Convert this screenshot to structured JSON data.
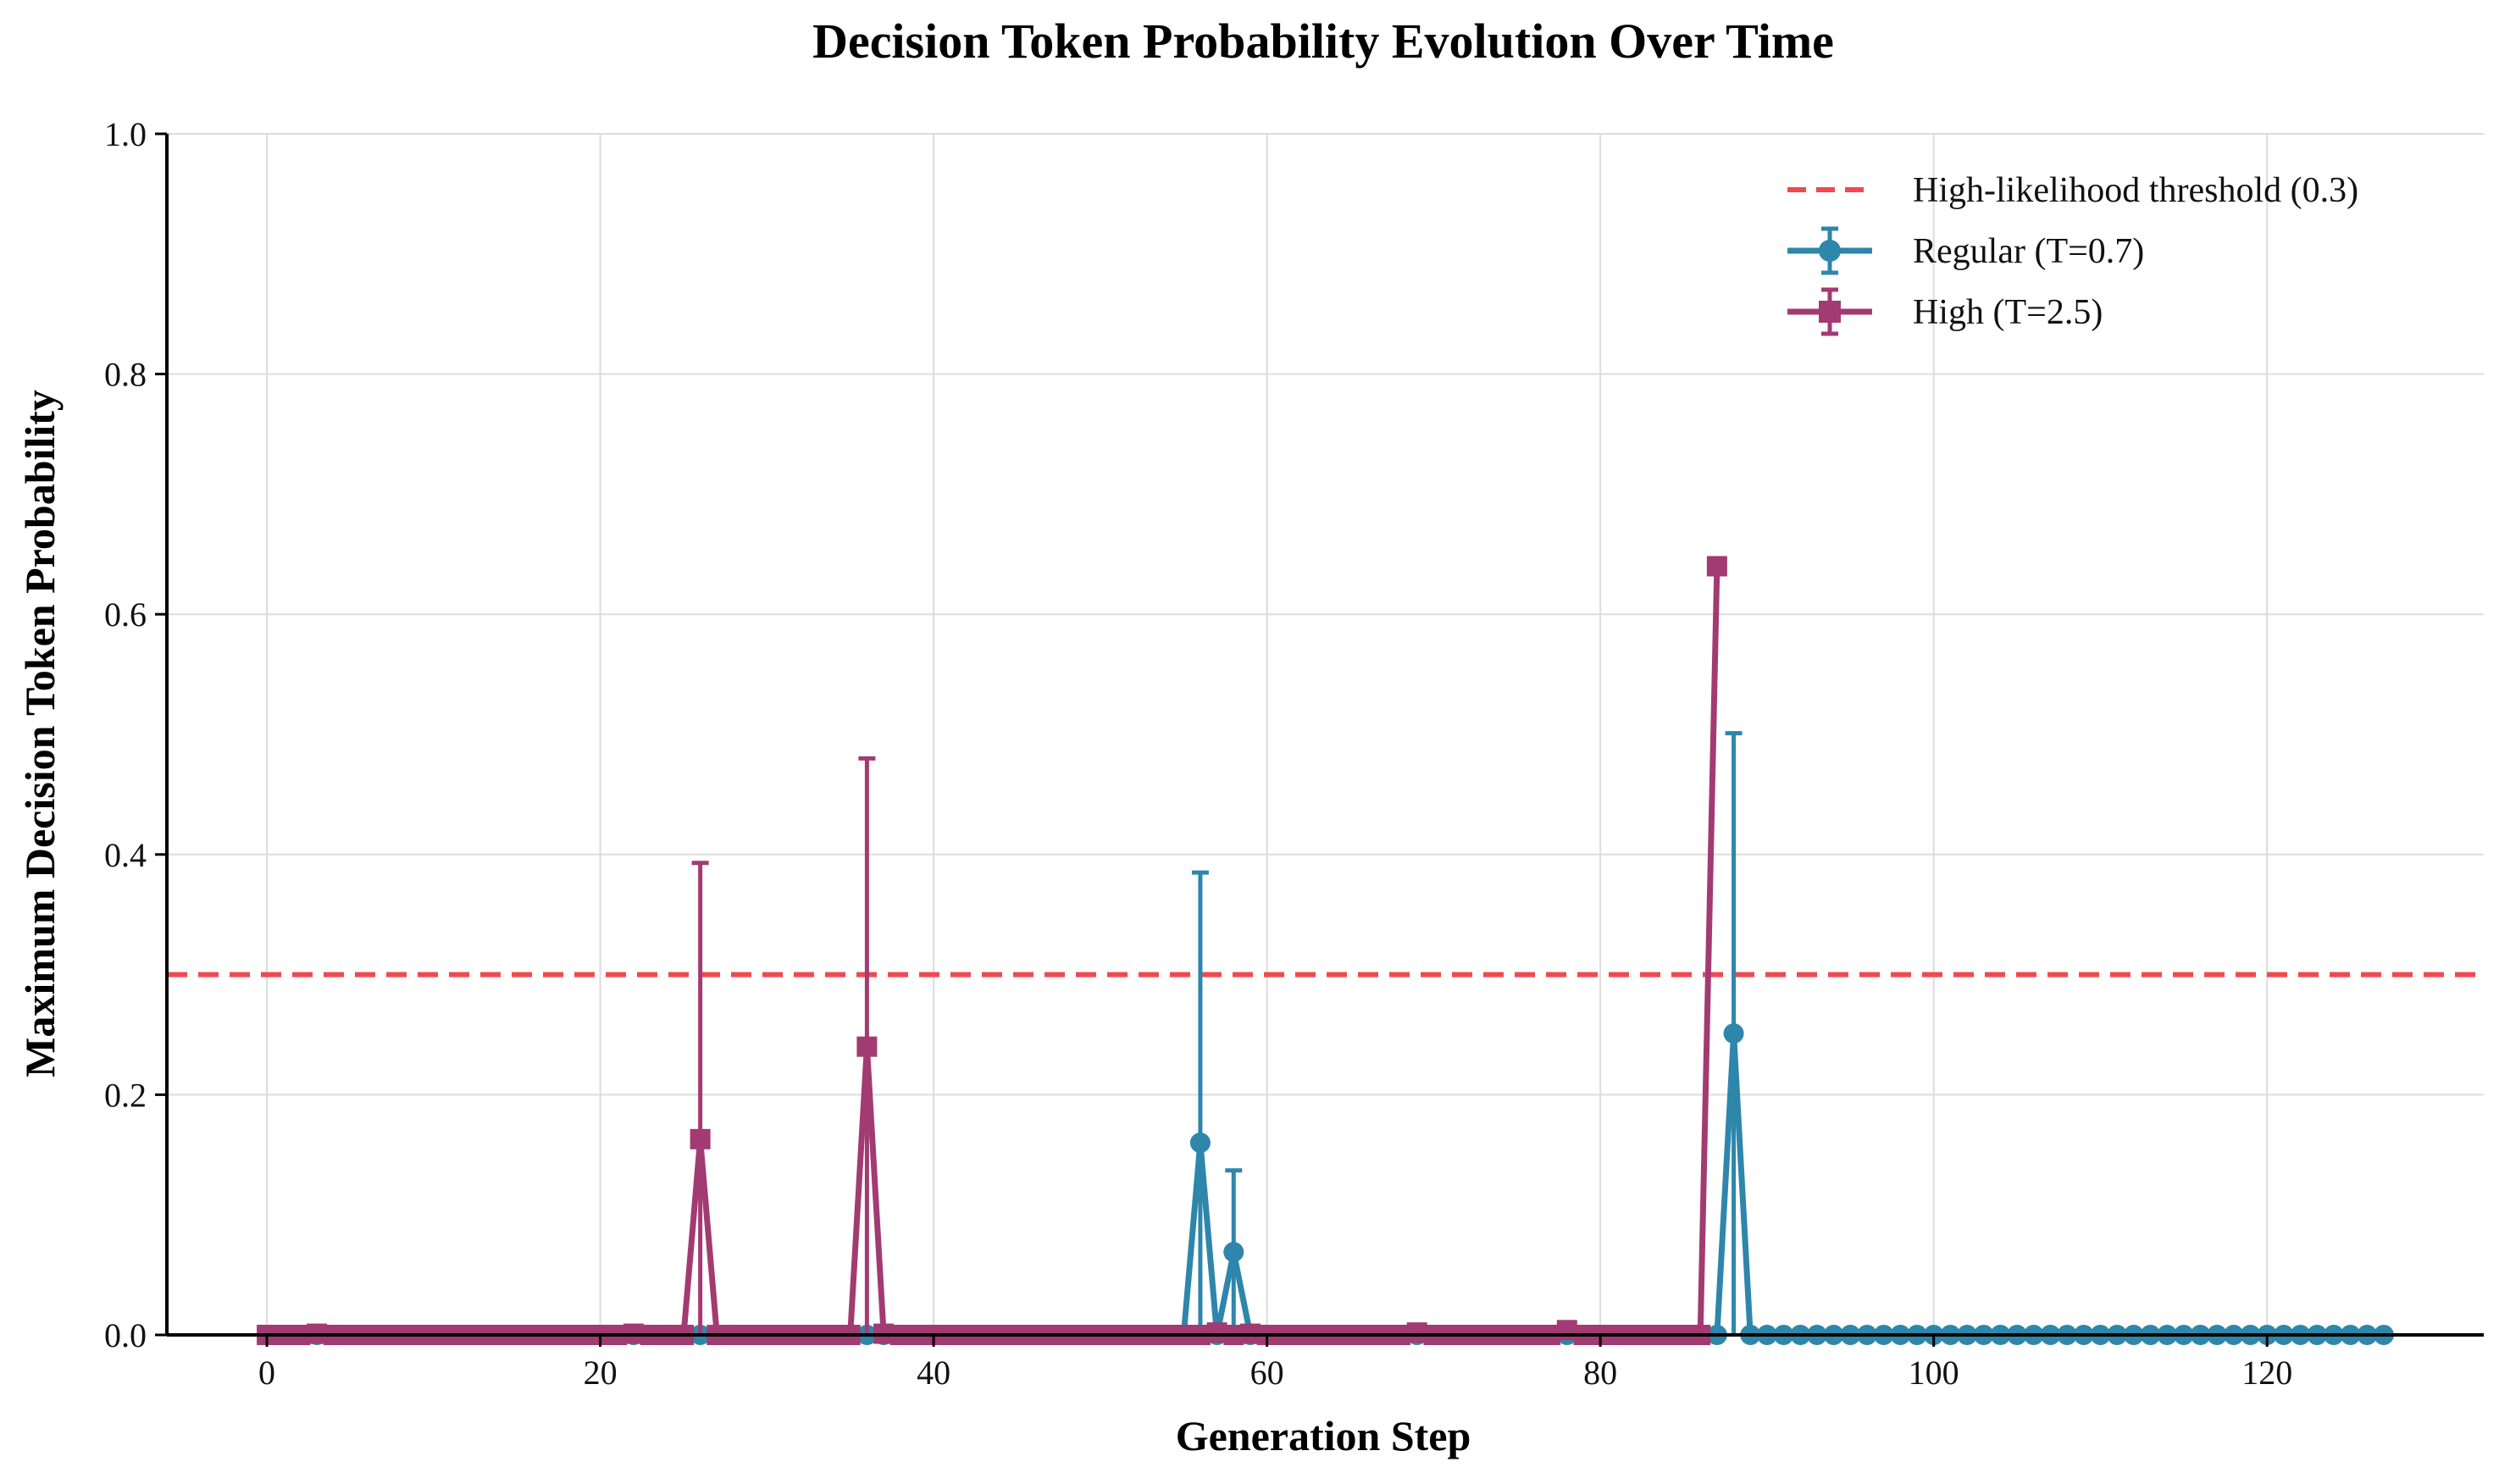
{
  "chart_data": {
    "type": "line",
    "title": "Decision Token Probability Evolution Over Time",
    "xlabel": "Generation Step",
    "ylabel": "Maximum Decision Token Probability",
    "xlim": [
      -6,
      133
    ],
    "ylim": [
      0,
      1.0
    ],
    "xticks": [
      0,
      20,
      40,
      60,
      80,
      100,
      120
    ],
    "yticks": [
      "0.0",
      "0.2",
      "0.4",
      "0.6",
      "0.8",
      "1.0"
    ],
    "grid": true,
    "legend_position": "top-right",
    "threshold": {
      "name": "High-likelihood threshold (0.3)",
      "y": 0.3,
      "color": "#f04a4f",
      "style": "dashed"
    },
    "series": [
      {
        "name": "Regular (T=0.7)",
        "color": "#2e86ab",
        "marker": "circle",
        "points": [
          [
            0,
            0,
            0
          ],
          [
            1,
            0,
            0
          ],
          [
            2,
            0,
            0
          ],
          [
            3,
            0,
            0
          ],
          [
            4,
            0,
            0
          ],
          [
            5,
            0,
            0
          ],
          [
            6,
            0,
            0
          ],
          [
            7,
            0,
            0
          ],
          [
            8,
            0,
            0
          ],
          [
            9,
            0,
            0
          ],
          [
            10,
            0,
            0
          ],
          [
            11,
            0,
            0
          ],
          [
            12,
            0,
            0
          ],
          [
            13,
            0,
            0
          ],
          [
            14,
            0,
            0
          ],
          [
            15,
            0,
            0
          ],
          [
            16,
            0,
            0
          ],
          [
            17,
            0,
            0
          ],
          [
            18,
            0,
            0
          ],
          [
            19,
            0,
            0
          ],
          [
            20,
            0,
            0
          ],
          [
            21,
            0,
            0
          ],
          [
            22,
            0,
            0
          ],
          [
            23,
            0,
            0
          ],
          [
            24,
            0,
            0
          ],
          [
            25,
            0,
            0
          ],
          [
            26,
            0,
            0
          ],
          [
            27,
            0,
            0
          ],
          [
            28,
            0,
            0
          ],
          [
            29,
            0,
            0
          ],
          [
            30,
            0,
            0
          ],
          [
            31,
            0,
            0
          ],
          [
            32,
            0,
            0
          ],
          [
            33,
            0,
            0
          ],
          [
            34,
            0,
            0
          ],
          [
            35,
            0,
            0
          ],
          [
            36,
            0,
            0
          ],
          [
            37,
            0,
            0
          ],
          [
            38,
            0,
            0
          ],
          [
            39,
            0,
            0
          ],
          [
            40,
            0,
            0
          ],
          [
            41,
            0,
            0
          ],
          [
            42,
            0,
            0
          ],
          [
            43,
            0,
            0
          ],
          [
            44,
            0,
            0
          ],
          [
            45,
            0,
            0
          ],
          [
            46,
            0,
            0
          ],
          [
            47,
            0,
            0
          ],
          [
            48,
            0,
            0
          ],
          [
            49,
            0,
            0
          ],
          [
            50,
            0,
            0
          ],
          [
            51,
            0,
            0
          ],
          [
            52,
            0,
            0
          ],
          [
            53,
            0,
            0
          ],
          [
            54,
            0,
            0
          ],
          [
            55,
            0,
            0
          ],
          [
            56,
            0.16,
            0.225
          ],
          [
            57,
            0,
            0
          ],
          [
            58,
            0.069,
            0.068
          ],
          [
            59,
            0,
            0
          ],
          [
            60,
            0,
            0
          ],
          [
            61,
            0,
            0
          ],
          [
            62,
            0,
            0
          ],
          [
            63,
            0,
            0
          ],
          [
            64,
            0,
            0
          ],
          [
            65,
            0,
            0
          ],
          [
            66,
            0,
            0
          ],
          [
            67,
            0,
            0
          ],
          [
            68,
            0,
            0
          ],
          [
            69,
            0,
            0
          ],
          [
            70,
            0,
            0
          ],
          [
            71,
            0,
            0
          ],
          [
            72,
            0,
            0
          ],
          [
            73,
            0,
            0
          ],
          [
            74,
            0,
            0
          ],
          [
            75,
            0,
            0
          ],
          [
            76,
            0,
            0
          ],
          [
            77,
            0,
            0
          ],
          [
            78,
            0,
            0
          ],
          [
            79,
            0,
            0
          ],
          [
            80,
            0,
            0
          ],
          [
            81,
            0,
            0
          ],
          [
            82,
            0,
            0
          ],
          [
            83,
            0,
            0
          ],
          [
            84,
            0,
            0
          ],
          [
            85,
            0,
            0
          ],
          [
            86,
            0,
            0
          ],
          [
            87,
            0,
            0
          ],
          [
            88,
            0.251,
            0.25
          ],
          [
            89,
            0,
            0
          ],
          [
            90,
            0,
            0
          ],
          [
            91,
            0,
            0
          ],
          [
            92,
            0,
            0
          ],
          [
            93,
            0,
            0
          ],
          [
            94,
            0,
            0
          ],
          [
            95,
            0,
            0
          ],
          [
            96,
            0,
            0
          ],
          [
            97,
            0,
            0
          ],
          [
            98,
            0,
            0
          ],
          [
            99,
            0,
            0
          ],
          [
            100,
            0,
            0
          ],
          [
            101,
            0,
            0
          ],
          [
            102,
            0,
            0
          ],
          [
            103,
            0,
            0
          ],
          [
            104,
            0,
            0
          ],
          [
            105,
            0,
            0
          ],
          [
            106,
            0,
            0
          ],
          [
            107,
            0,
            0
          ],
          [
            108,
            0,
            0
          ],
          [
            109,
            0,
            0
          ],
          [
            110,
            0,
            0
          ],
          [
            111,
            0,
            0
          ],
          [
            112,
            0,
            0
          ],
          [
            113,
            0,
            0
          ],
          [
            114,
            0,
            0
          ],
          [
            115,
            0,
            0
          ],
          [
            116,
            0,
            0
          ],
          [
            117,
            0,
            0
          ],
          [
            118,
            0,
            0
          ],
          [
            119,
            0,
            0
          ],
          [
            120,
            0,
            0
          ],
          [
            121,
            0,
            0
          ],
          [
            122,
            0,
            0
          ],
          [
            123,
            0,
            0
          ],
          [
            124,
            0,
            0
          ],
          [
            125,
            0,
            0
          ],
          [
            126,
            0,
            0
          ],
          [
            127,
            0,
            0
          ]
        ]
      },
      {
        "name": "High (T=2.5)",
        "color": "#a23b72",
        "marker": "square",
        "points": [
          [
            0,
            0,
            0
          ],
          [
            1,
            0,
            0
          ],
          [
            2,
            0,
            0
          ],
          [
            3,
            0.001,
            0.001
          ],
          [
            4,
            0,
            0
          ],
          [
            5,
            0,
            0
          ],
          [
            6,
            0,
            0
          ],
          [
            7,
            0,
            0
          ],
          [
            8,
            0,
            0
          ],
          [
            9,
            0,
            0
          ],
          [
            10,
            0,
            0
          ],
          [
            11,
            0,
            0
          ],
          [
            12,
            0,
            0
          ],
          [
            13,
            0,
            0
          ],
          [
            14,
            0,
            0
          ],
          [
            15,
            0,
            0
          ],
          [
            16,
            0,
            0
          ],
          [
            17,
            0,
            0
          ],
          [
            18,
            0,
            0
          ],
          [
            19,
            0,
            0
          ],
          [
            20,
            0,
            0
          ],
          [
            21,
            0,
            0
          ],
          [
            22,
            0.001,
            0.001
          ],
          [
            23,
            0,
            0
          ],
          [
            24,
            0,
            0
          ],
          [
            25,
            0,
            0
          ],
          [
            26,
            0.163,
            0.23
          ],
          [
            27,
            0,
            0
          ],
          [
            28,
            0,
            0
          ],
          [
            29,
            0,
            0
          ],
          [
            30,
            0,
            0
          ],
          [
            31,
            0,
            0
          ],
          [
            32,
            0,
            0
          ],
          [
            33,
            0,
            0
          ],
          [
            34,
            0,
            0
          ],
          [
            35,
            0,
            0
          ],
          [
            36,
            0.24,
            0.24
          ],
          [
            37,
            0.001,
            0.001
          ],
          [
            38,
            0,
            0
          ],
          [
            39,
            0,
            0
          ],
          [
            40,
            0,
            0
          ],
          [
            41,
            0,
            0
          ],
          [
            42,
            0,
            0
          ],
          [
            43,
            0,
            0
          ],
          [
            44,
            0,
            0
          ],
          [
            45,
            0,
            0
          ],
          [
            46,
            0,
            0
          ],
          [
            47,
            0,
            0
          ],
          [
            48,
            0,
            0
          ],
          [
            49,
            0,
            0
          ],
          [
            50,
            0,
            0
          ],
          [
            51,
            0,
            0
          ],
          [
            52,
            0,
            0
          ],
          [
            53,
            0,
            0
          ],
          [
            54,
            0,
            0
          ],
          [
            55,
            0,
            0
          ],
          [
            56,
            0,
            0
          ],
          [
            57,
            0.002,
            0.002
          ],
          [
            58,
            0,
            0
          ],
          [
            59,
            0.001,
            0.001
          ],
          [
            60,
            0,
            0
          ],
          [
            61,
            0,
            0
          ],
          [
            62,
            0,
            0
          ],
          [
            63,
            0,
            0
          ],
          [
            64,
            0,
            0
          ],
          [
            65,
            0,
            0
          ],
          [
            66,
            0,
            0
          ],
          [
            67,
            0,
            0
          ],
          [
            68,
            0,
            0
          ],
          [
            69,
            0.002,
            0.002
          ],
          [
            70,
            0,
            0
          ],
          [
            71,
            0,
            0
          ],
          [
            72,
            0,
            0
          ],
          [
            73,
            0,
            0
          ],
          [
            74,
            0,
            0
          ],
          [
            75,
            0,
            0
          ],
          [
            76,
            0,
            0
          ],
          [
            77,
            0,
            0
          ],
          [
            78,
            0.004,
            0.004
          ],
          [
            79,
            0,
            0
          ],
          [
            80,
            0,
            0
          ],
          [
            81,
            0,
            0
          ],
          [
            82,
            0,
            0
          ],
          [
            83,
            0,
            0
          ],
          [
            84,
            0,
            0
          ],
          [
            85,
            0,
            0
          ],
          [
            86,
            0,
            0
          ],
          [
            87,
            0.64,
            0
          ]
        ]
      }
    ]
  }
}
